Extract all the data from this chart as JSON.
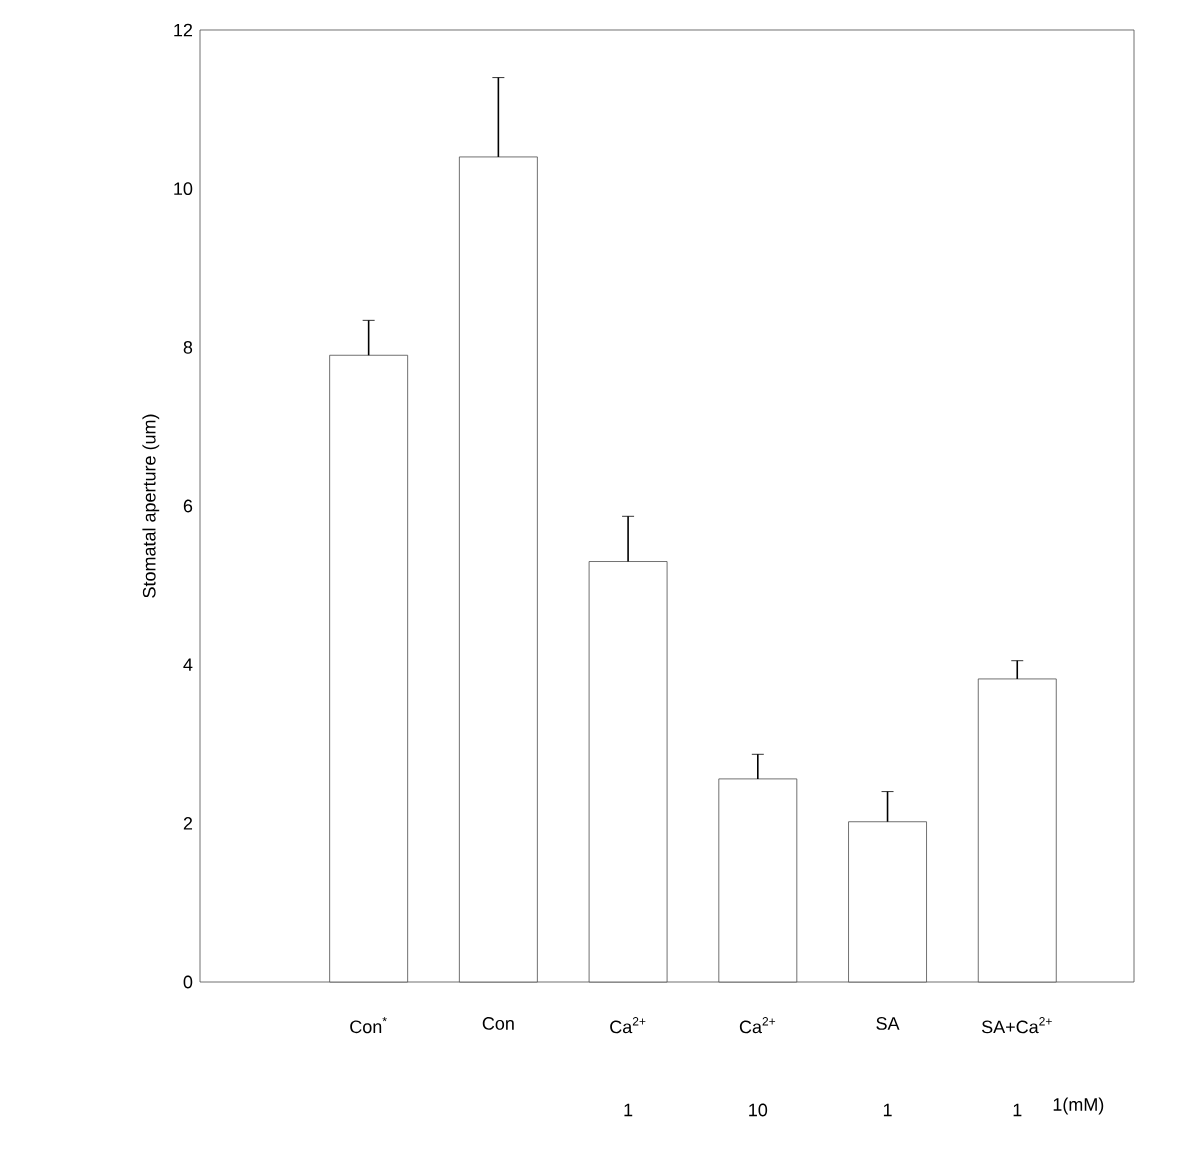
{
  "chart_data": {
    "type": "bar",
    "ylabel": "Stomatal aperture (um)",
    "categories": [
      "Con$^{*}$",
      "Con",
      "Ca$^{2+}$",
      "Ca$^{2+}$",
      "SA",
      "SA+Ca$^{2+}$"
    ],
    "values": [
      7.9,
      10.4,
      5.3,
      2.56,
      2.02,
      3.82
    ],
    "errors": [
      0.44,
      1.0,
      0.57,
      0.31,
      0.38,
      0.23
    ],
    "color": "#ffffff",
    "ylim": [
      0,
      12
    ],
    "yticks": [
      0,
      2,
      4,
      6,
      8,
      10,
      12
    ],
    "annotations": [
      "1",
      "10",
      "1",
      "1",
      "1(mM)"
    ]
  }
}
